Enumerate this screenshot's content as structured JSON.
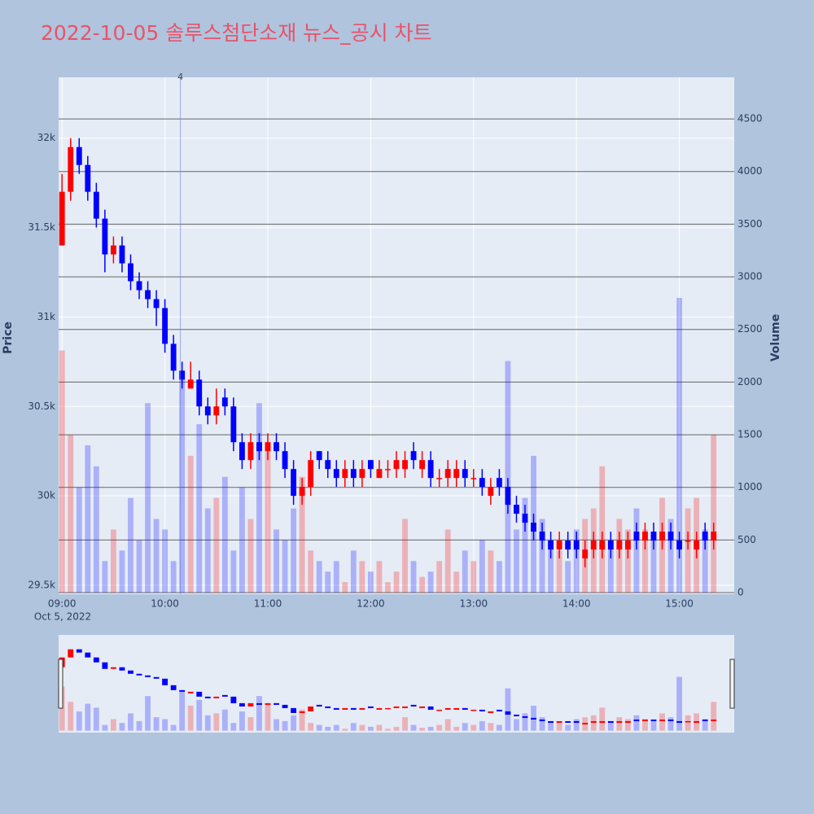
{
  "chart_data": {
    "type": "candlestick",
    "title": "2022-10-05 솔루스첨단소재 뉴스_공시 차트",
    "y_title": "Price",
    "y2_title": "Volume",
    "x_date_label": "Oct 5, 2022",
    "increasing_color": "#ff0000",
    "decreasing_color": "#0000ff",
    "grid": true,
    "annotations": [
      {
        "x": "10:09",
        "text": "4"
      }
    ],
    "x": [
      "09:00",
      "09:05",
      "09:10",
      "09:15",
      "09:20",
      "09:25",
      "09:30",
      "09:35",
      "09:40",
      "09:45",
      "09:50",
      "09:55",
      "10:00",
      "10:05",
      "10:10",
      "10:15",
      "10:20",
      "10:25",
      "10:30",
      "10:35",
      "10:40",
      "10:45",
      "10:50",
      "10:55",
      "11:00",
      "11:05",
      "11:10",
      "11:15",
      "11:20",
      "11:25",
      "11:30",
      "11:35",
      "11:40",
      "11:45",
      "11:50",
      "11:55",
      "12:00",
      "12:05",
      "12:10",
      "12:15",
      "12:20",
      "12:25",
      "12:30",
      "12:35",
      "12:40",
      "12:45",
      "12:50",
      "12:55",
      "13:00",
      "13:05",
      "13:10",
      "13:15",
      "13:20",
      "13:25",
      "13:30",
      "13:35",
      "13:40",
      "13:45",
      "13:50",
      "13:55",
      "14:00",
      "14:05",
      "14:10",
      "14:15",
      "14:20",
      "14:25",
      "14:30",
      "14:35",
      "14:40",
      "14:45",
      "14:50",
      "14:55",
      "15:00",
      "15:05",
      "15:10",
      "15:15",
      "15:20"
    ],
    "open": [
      31400,
      31700,
      31950,
      31850,
      31700,
      31550,
      31350,
      31400,
      31300,
      31200,
      31150,
      31100,
      31050,
      30850,
      30700,
      30600,
      30650,
      30500,
      30450,
      30550,
      30500,
      30300,
      30200,
      30300,
      30250,
      30300,
      30250,
      30150,
      30000,
      30050,
      30250,
      30200,
      30150,
      30100,
      30150,
      30100,
      30200,
      30100,
      30150,
      30150,
      30150,
      30250,
      30150,
      30200,
      30100,
      30100,
      30100,
      30150,
      30100,
      30100,
      30000,
      30100,
      30050,
      29950,
      29900,
      29850,
      29800,
      29750,
      29700,
      29750,
      29750,
      29650,
      29700,
      29700,
      29750,
      29700,
      29700,
      29800,
      29750,
      29800,
      29750,
      29800,
      29750,
      29750,
      29700,
      29800,
      29750
    ],
    "high": [
      31800,
      32000,
      32000,
      31900,
      31750,
      31600,
      31450,
      31450,
      31350,
      31250,
      31200,
      31150,
      31100,
      30900,
      30750,
      30750,
      30700,
      30550,
      30600,
      30600,
      30550,
      30350,
      30350,
      30350,
      30350,
      30350,
      30300,
      30200,
      30100,
      30250,
      30250,
      30250,
      30200,
      30200,
      30200,
      30200,
      30200,
      30200,
      30200,
      30250,
      30250,
      30300,
      30250,
      30250,
      30150,
      30200,
      30200,
      30200,
      30150,
      30150,
      30100,
      30150,
      30100,
      30000,
      29950,
      29900,
      29850,
      29800,
      29800,
      29800,
      29800,
      29750,
      29800,
      29800,
      29800,
      29800,
      29800,
      29850,
      29850,
      29850,
      29850,
      29850,
      29800,
      29800,
      29800,
      29850,
      29850
    ],
    "low": [
      31400,
      31650,
      31800,
      31650,
      31500,
      31250,
      31300,
      31250,
      31150,
      31100,
      31050,
      30950,
      30800,
      30650,
      30600,
      30600,
      30450,
      30400,
      30400,
      30450,
      30250,
      30150,
      30150,
      30200,
      30200,
      30200,
      30100,
      29950,
      29950,
      30000,
      30150,
      30100,
      30050,
      30050,
      30050,
      30050,
      30100,
      30100,
      30100,
      30100,
      30100,
      30150,
      30100,
      30050,
      30050,
      30050,
      30050,
      30050,
      30050,
      30000,
      29950,
      30000,
      29900,
      29850,
      29800,
      29750,
      29700,
      29650,
      29650,
      29650,
      29650,
      29600,
      29650,
      29650,
      29650,
      29650,
      29650,
      29700,
      29700,
      29700,
      29700,
      29700,
      29650,
      29700,
      29650,
      29700,
      29700
    ],
    "close": [
      31700,
      31950,
      31850,
      31700,
      31550,
      31350,
      31400,
      31300,
      31200,
      31150,
      31100,
      31050,
      30850,
      30700,
      30650,
      30650,
      30500,
      30450,
      30500,
      30500,
      30300,
      30200,
      30300,
      30250,
      30300,
      30250,
      30150,
      30000,
      30050,
      30200,
      30200,
      30150,
      30100,
      30150,
      30100,
      30150,
      30150,
      30150,
      30150,
      30200,
      30200,
      30200,
      30200,
      30100,
      30100,
      30150,
      30150,
      30100,
      30100,
      30050,
      30050,
      30050,
      29950,
      29900,
      29850,
      29800,
      29750,
      29700,
      29750,
      29700,
      29700,
      29700,
      29750,
      29750,
      29700,
      29750,
      29750,
      29750,
      29800,
      29750,
      29800,
      29750,
      29700,
      29750,
      29750,
      29750,
      29800
    ],
    "volume": [
      2300,
      1500,
      1000,
      1400,
      1200,
      300,
      600,
      400,
      900,
      500,
      1800,
      700,
      600,
      300,
      2100,
      1300,
      1600,
      800,
      900,
      1100,
      400,
      1000,
      700,
      1800,
      1400,
      600,
      500,
      800,
      1100,
      400,
      300,
      200,
      300,
      100,
      400,
      300,
      200,
      300,
      100,
      200,
      700,
      300,
      150,
      200,
      300,
      600,
      200,
      400,
      300,
      500,
      400,
      300,
      2200,
      600,
      900,
      1300,
      700,
      500,
      400,
      300,
      600,
      700,
      800,
      1200,
      500,
      700,
      600,
      800,
      600,
      500,
      900,
      700,
      2800,
      800,
      900,
      600,
      1500
    ],
    "xlim": [
      "08:58",
      "15:32"
    ],
    "xticks": [
      "09:00",
      "10:00",
      "11:00",
      "12:00",
      "13:00",
      "14:00",
      "15:00"
    ],
    "ylim": [
      29450,
      32340
    ],
    "yticks": [
      {
        "value": 29500,
        "label": "29.5k"
      },
      {
        "value": 30000,
        "label": "30k"
      },
      {
        "value": 30500,
        "label": "30.5k"
      },
      {
        "value": 31000,
        "label": "31k"
      },
      {
        "value": 31500,
        "label": "31.5k"
      },
      {
        "value": 32000,
        "label": "32k"
      }
    ],
    "y2lim": [
      -15,
      4895
    ],
    "y2ticks": [
      0,
      500,
      1000,
      1500,
      2000,
      2500,
      3000,
      3500,
      4000,
      4500
    ]
  }
}
